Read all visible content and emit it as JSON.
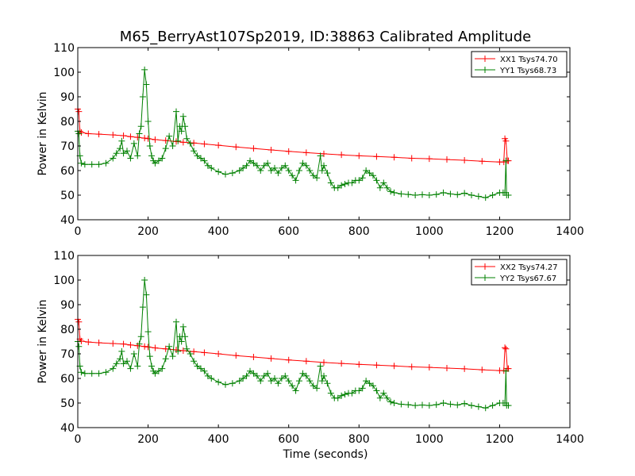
{
  "title": "M65_BerryAst107Sp2019, ID:38863 Calibrated Amplitude",
  "xlabel": "Time (seconds)",
  "colors": {
    "series_a": "#ff0000",
    "series_b": "#008000",
    "axes": "#000000",
    "background": "#ffffff"
  },
  "chart_data": [
    {
      "type": "line",
      "ylabel": "Power in Kelvin",
      "xlim": [
        0,
        1400
      ],
      "ylim": [
        40,
        110
      ],
      "xticks": [
        "0",
        "200",
        "400",
        "600",
        "800",
        "1000",
        "1200",
        "1400"
      ],
      "yticks": [
        "40",
        "50",
        "60",
        "70",
        "80",
        "90",
        "100",
        "110"
      ],
      "legend_position": "top-right",
      "grid": false,
      "series": [
        {
          "name": "XX1 Tsys74.70",
          "color": "#ff0000",
          "marker": "+",
          "x": [
            0,
            3,
            6,
            10,
            30,
            60,
            100,
            130,
            150,
            170,
            190,
            200,
            220,
            250,
            280,
            300,
            330,
            360,
            400,
            450,
            500,
            550,
            600,
            650,
            700,
            750,
            800,
            850,
            900,
            950,
            1000,
            1050,
            1100,
            1150,
            1200,
            1212,
            1215,
            1218,
            1222,
            1225
          ],
          "y": [
            85,
            84,
            76,
            75.5,
            75,
            74.8,
            74.5,
            74.2,
            73.8,
            73.5,
            73.2,
            73,
            72.6,
            72.2,
            71.8,
            71.5,
            71.2,
            70.8,
            70.3,
            69.6,
            69,
            68.4,
            67.8,
            67.3,
            66.8,
            66.4,
            66,
            65.7,
            65.4,
            65,
            64.8,
            64.5,
            64.2,
            63.8,
            63.5,
            63.5,
            73,
            72,
            64,
            64
          ]
        },
        {
          "name": "YY1 Tsys68.73",
          "color": "#008000",
          "marker": "+",
          "x": [
            0,
            3,
            6,
            10,
            20,
            40,
            60,
            80,
            100,
            110,
            120,
            125,
            130,
            140,
            150,
            160,
            170,
            175,
            180,
            185,
            190,
            195,
            200,
            205,
            210,
            215,
            220,
            230,
            240,
            250,
            260,
            270,
            280,
            285,
            290,
            295,
            300,
            305,
            310,
            320,
            330,
            340,
            350,
            360,
            370,
            380,
            400,
            420,
            440,
            460,
            470,
            480,
            490,
            500,
            510,
            520,
            530,
            540,
            550,
            560,
            570,
            580,
            590,
            600,
            610,
            620,
            630,
            640,
            650,
            660,
            670,
            680,
            690,
            695,
            700,
            710,
            720,
            730,
            740,
            750,
            760,
            770,
            780,
            790,
            800,
            810,
            820,
            830,
            840,
            850,
            860,
            870,
            880,
            890,
            900,
            920,
            940,
            960,
            980,
            1000,
            1020,
            1040,
            1060,
            1080,
            1100,
            1120,
            1140,
            1160,
            1180,
            1200,
            1210,
            1215,
            1218,
            1220,
            1225
          ],
          "y": [
            76,
            75,
            66,
            63,
            62.5,
            62.5,
            62.5,
            63,
            65,
            67,
            69,
            72,
            67,
            68,
            65,
            71,
            66,
            75,
            78,
            90,
            101,
            95,
            80,
            70,
            66,
            64,
            63,
            64,
            65,
            69,
            74,
            70,
            84,
            72,
            78,
            76,
            82,
            78,
            73,
            71,
            68,
            66,
            65,
            64,
            62,
            61,
            59.5,
            58.5,
            59,
            60,
            61,
            62,
            64,
            63,
            62,
            60,
            62,
            63,
            60,
            61,
            59,
            61,
            62,
            60,
            58,
            56,
            60,
            63,
            62,
            60,
            58,
            57,
            66,
            60,
            62,
            59,
            55,
            53,
            53,
            54,
            54.5,
            55,
            55,
            56,
            56,
            57,
            60,
            59,
            58,
            56,
            53,
            55,
            53,
            51.5,
            51,
            50.5,
            50.3,
            50,
            50.2,
            50,
            50.3,
            51,
            50.5,
            50.2,
            50.8,
            50,
            49.5,
            49,
            50,
            51,
            51,
            51,
            64,
            50,
            50
          ]
        }
      ]
    },
    {
      "type": "line",
      "ylabel": "Power in Kelvin",
      "xlabel": "Time (seconds)",
      "xlim": [
        0,
        1400
      ],
      "ylim": [
        40,
        110
      ],
      "xticks": [
        "0",
        "200",
        "400",
        "600",
        "800",
        "1000",
        "1200",
        "1400"
      ],
      "yticks": [
        "40",
        "50",
        "60",
        "70",
        "80",
        "90",
        "100",
        "110"
      ],
      "legend_position": "top-right",
      "grid": false,
      "series": [
        {
          "name": "XX2 Tsys74.27",
          "color": "#ff0000",
          "marker": "+",
          "x": [
            0,
            3,
            6,
            10,
            30,
            60,
            100,
            130,
            150,
            170,
            190,
            200,
            220,
            250,
            280,
            300,
            330,
            360,
            400,
            450,
            500,
            550,
            600,
            650,
            700,
            750,
            800,
            850,
            900,
            950,
            1000,
            1050,
            1100,
            1150,
            1200,
            1212,
            1215,
            1218,
            1222,
            1225
          ],
          "y": [
            84,
            83,
            76,
            75.2,
            74.8,
            74.5,
            74.2,
            74,
            73.6,
            73.3,
            73,
            72.8,
            72.4,
            72,
            71.6,
            71.3,
            70.9,
            70.5,
            70,
            69.3,
            68.7,
            68.1,
            67.5,
            67,
            66.5,
            66.1,
            65.7,
            65.4,
            65.1,
            64.7,
            64.5,
            64.2,
            63.9,
            63.5,
            63.2,
            63.2,
            72.5,
            72,
            64,
            64
          ]
        },
        {
          "name": "YY2 Tsys67.67",
          "color": "#008000",
          "marker": "+",
          "x": [
            0,
            3,
            6,
            10,
            20,
            40,
            60,
            80,
            100,
            110,
            120,
            125,
            130,
            140,
            150,
            160,
            170,
            175,
            180,
            185,
            190,
            195,
            200,
            205,
            210,
            215,
            220,
            230,
            240,
            250,
            260,
            270,
            280,
            285,
            290,
            295,
            300,
            305,
            310,
            320,
            330,
            340,
            350,
            360,
            370,
            380,
            400,
            420,
            440,
            460,
            470,
            480,
            490,
            500,
            510,
            520,
            530,
            540,
            550,
            560,
            570,
            580,
            590,
            600,
            610,
            620,
            630,
            640,
            650,
            660,
            670,
            680,
            690,
            695,
            700,
            710,
            720,
            730,
            740,
            750,
            760,
            770,
            780,
            790,
            800,
            810,
            820,
            830,
            840,
            850,
            860,
            870,
            880,
            890,
            900,
            920,
            940,
            960,
            980,
            1000,
            1020,
            1040,
            1060,
            1080,
            1100,
            1120,
            1140,
            1160,
            1180,
            1200,
            1210,
            1215,
            1218,
            1220,
            1225
          ],
          "y": [
            75,
            73,
            65,
            62.5,
            62,
            62,
            62,
            62.5,
            64,
            66,
            68,
            71,
            66,
            67,
            64,
            70,
            65,
            74,
            77,
            89,
            100,
            94,
            79,
            69,
            65,
            63,
            62,
            63,
            64,
            68,
            73,
            69,
            83,
            71,
            77,
            75,
            81,
            77,
            72,
            70,
            67,
            65,
            64,
            63,
            61,
            60,
            58.5,
            57.5,
            58,
            59,
            60,
            61,
            63,
            62,
            61,
            59,
            61,
            62,
            59,
            60,
            58,
            60,
            61,
            59,
            57,
            55,
            59,
            62,
            61,
            59,
            57,
            56,
            65,
            59,
            61,
            58,
            54,
            52,
            52,
            53,
            53.5,
            54,
            54,
            55,
            55,
            56,
            59,
            58,
            57,
            55,
            52,
            54,
            52,
            50.5,
            50,
            49.5,
            49.3,
            49,
            49.2,
            49,
            49.3,
            50,
            49.5,
            49.2,
            49.8,
            49,
            48.5,
            48,
            49,
            50,
            50,
            50,
            63,
            49,
            49
          ]
        }
      ]
    }
  ]
}
